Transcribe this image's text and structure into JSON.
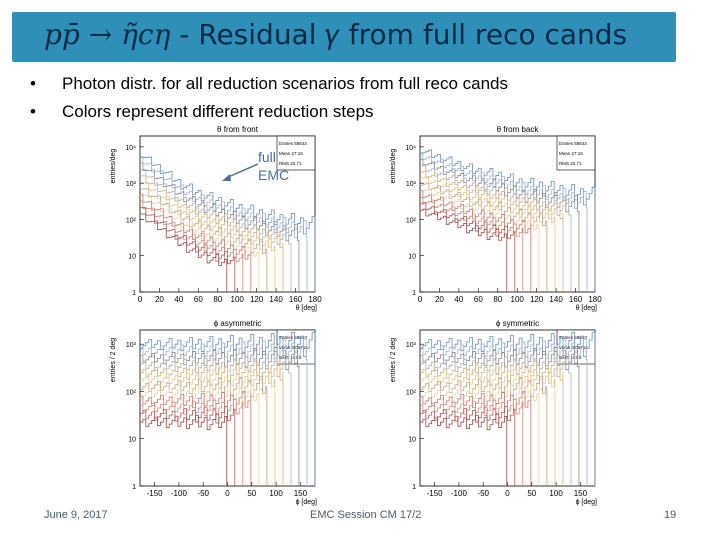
{
  "slide": {
    "title_prefix": "𝑝𝑝̄ → 𝜂̃𝑐𝜂",
    "title_rest": " - Residual 𝛾 from full reco cands",
    "bullets": [
      "Photon distr. for all reduction scenarios from full reco cands",
      "Colors represent different reduction steps"
    ],
    "footer_date": "June 9, 2017",
    "footer_center": "EMC Session CM 17/2",
    "footer_page": "19",
    "annotation": [
      "full",
      "EMC"
    ],
    "accent_color": "#2e8fb8"
  },
  "chart_data": [
    {
      "type": "line",
      "title": "θ from front",
      "ylabel": "entries/deg",
      "xlabel": "θ [deg]",
      "x_ticks": [
        0,
        20,
        40,
        60,
        80,
        100,
        120,
        140,
        160,
        180
      ],
      "y_ticks": [
        "10",
        "10²",
        "10³",
        "10⁴",
        "1"
      ],
      "ylim_log": [
        0,
        4.3
      ],
      "xlim": [
        0,
        180
      ],
      "stats": {
        "entries": "Entries 58643",
        "mean": "Mean 27.10",
        "rms": "RMS 23.71"
      },
      "series": [
        {
          "values": [
            3.8,
            3.4,
            3.0,
            2.7,
            2.5,
            2.3,
            2.15,
            2.0,
            1.9,
            1.8
          ]
        }
      ]
    },
    {
      "type": "line",
      "title": "θ from back",
      "ylabel": "entries/deg",
      "xlabel": "θ [deg]",
      "x_ticks": [
        0,
        20,
        40,
        60,
        80,
        100,
        120,
        140,
        160,
        180
      ],
      "y_ticks": [
        "1",
        "10",
        "10²",
        "10³",
        "10⁴"
      ],
      "ylim_log": [
        0,
        4.3
      ],
      "xlim": [
        0,
        180
      ],
      "stats": {
        "entries": "Entries 58643",
        "mean": "Mean 27.10",
        "rms": "RMS 23.71"
      },
      "series": [
        {
          "values": [
            3.9,
            3.7,
            3.5,
            3.3,
            3.2,
            3.0,
            2.9,
            2.8,
            2.7,
            2.6
          ]
        }
      ]
    },
    {
      "type": "line",
      "title": "ϕ asymmetric",
      "ylabel": "entries / 2 deg",
      "xlabel": "ϕ [deg]",
      "x_ticks": [
        -150,
        -100,
        -50,
        0,
        50,
        100,
        150
      ],
      "y_ticks": [
        "1",
        "10",
        "10²",
        "10³"
      ],
      "ylim_log": [
        0,
        3.3
      ],
      "xlim": [
        -180,
        180
      ],
      "stats": {
        "entries": "Entries 58643",
        "mean": "Mean 0.05716",
        "rms": "RMS 103.6"
      },
      "series": [
        {
          "values": [
            3.0,
            3.0,
            3.0,
            3.0,
            3.0,
            3.0,
            3.0
          ]
        }
      ]
    },
    {
      "type": "line",
      "title": "ϕ symmetric",
      "ylabel": "entries / 2 deg",
      "xlabel": "ϕ [deg]",
      "x_ticks": [
        -150,
        -100,
        -50,
        0,
        50,
        100,
        150
      ],
      "y_ticks": [
        "1",
        "10",
        "10²",
        "10³"
      ],
      "ylim_log": [
        0,
        3.3
      ],
      "xlim": [
        -180,
        180
      ],
      "stats": {
        "entries": "Entries 58643",
        "mean": "Mean 0.05716",
        "rms": "RMS 103.6"
      },
      "series": [
        {
          "values": [
            3.0,
            3.0,
            3.0,
            3.0,
            3.0,
            3.0,
            3.0
          ]
        }
      ]
    }
  ]
}
